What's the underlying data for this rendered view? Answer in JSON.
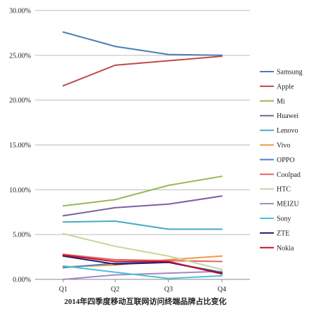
{
  "chart_data": {
    "type": "line",
    "title": "",
    "xlabel": "2014年四季度移动互联网访问终端品牌占比变化",
    "ylabel": "",
    "categories": [
      "Q1",
      "Q2",
      "Q3",
      "Q4"
    ],
    "ylim": [
      0,
      30
    ],
    "yticks": [
      0,
      5,
      10,
      15,
      20,
      25,
      30
    ],
    "ytick_labels": [
      "0.00%",
      "5.00%",
      "10.00%",
      "15.00%",
      "20.00%",
      "25.00%",
      "30.00%"
    ],
    "grid": "horizontal",
    "legend_position": "right",
    "series": [
      {
        "name": "Samsung",
        "color": "#4a7eb5",
        "values": [
          27.6,
          26.0,
          25.1,
          25.0
        ]
      },
      {
        "name": "Apple",
        "color": "#be4b48",
        "values": [
          21.6,
          23.9,
          24.4,
          24.9
        ]
      },
      {
        "name": "Mi",
        "color": "#98b954",
        "values": [
          8.2,
          8.9,
          10.5,
          11.5
        ]
      },
      {
        "name": "Huawei",
        "color": "#7d60a0",
        "values": [
          7.1,
          8.0,
          8.4,
          9.3
        ]
      },
      {
        "name": "Lenovo",
        "color": "#46aac5",
        "values": [
          6.4,
          6.5,
          5.6,
          5.6
        ]
      },
      {
        "name": "Vivo",
        "color": "#f79646",
        "values": [
          1.4,
          1.6,
          2.2,
          2.6
        ]
      },
      {
        "name": "OPPO",
        "color": "#4f81bd",
        "values": [
          1.3,
          1.8,
          1.9,
          0.8
        ]
      },
      {
        "name": "Coolpad",
        "color": "#e06666",
        "values": [
          2.8,
          2.2,
          2.1,
          2.0
        ]
      },
      {
        "name": "HTC",
        "color": "#c3d69b",
        "values": [
          5.1,
          3.7,
          2.6,
          1.1
        ]
      },
      {
        "name": "MEIZU",
        "color": "#a488c4",
        "values": [
          0.0,
          0.5,
          0.7,
          0.9
        ]
      },
      {
        "name": "Sony",
        "color": "#4bc3d8",
        "values": [
          1.5,
          0.8,
          0.1,
          0.4
        ]
      },
      {
        "name": "ZTE",
        "color": "#1f1b6b",
        "values": [
          2.6,
          1.7,
          1.9,
          0.7
        ]
      },
      {
        "name": "Nokia",
        "color": "#c8102e",
        "values": [
          2.7,
          2.0,
          2.0,
          0.6
        ]
      }
    ]
  }
}
